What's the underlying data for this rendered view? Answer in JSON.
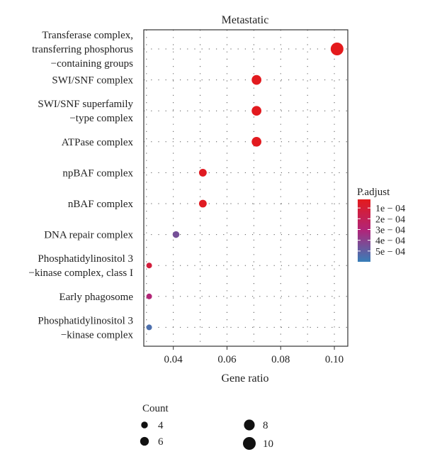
{
  "chart_data": {
    "type": "scatter",
    "title": "Metastatic",
    "xlabel": "Gene ratio",
    "ylabel": "",
    "xlim": [
      0.029,
      0.105
    ],
    "xticks": [
      0.04,
      0.06,
      0.08,
      0.1
    ],
    "xtick_labels": [
      "0.04",
      "0.06",
      "0.08",
      "0.10"
    ],
    "grid": true,
    "categories": [
      [
        "Transferase complex,",
        "transferring phosphorus",
        "−containing groups"
      ],
      [
        "SWI/SNF complex"
      ],
      [
        "SWI/SNF superfamily",
        "−type complex"
      ],
      [
        "ATPase complex"
      ],
      [
        "npBAF complex"
      ],
      [
        "nBAF complex"
      ],
      [
        "DNA repair complex"
      ],
      [
        "Phosphatidylinositol 3",
        "−kinase complex, class I"
      ],
      [
        "Early phagosome"
      ],
      [
        "Phosphatidylinositol 3",
        "−kinase complex"
      ]
    ],
    "points": [
      {
        "x": 0.101,
        "count": 10,
        "padj": 2e-05
      },
      {
        "x": 0.071,
        "count": 7,
        "padj": 3e-05
      },
      {
        "x": 0.071,
        "count": 7,
        "padj": 3e-05
      },
      {
        "x": 0.071,
        "count": 7,
        "padj": 3e-05
      },
      {
        "x": 0.051,
        "count": 5,
        "padj": 4e-05
      },
      {
        "x": 0.051,
        "count": 5,
        "padj": 4e-05
      },
      {
        "x": 0.041,
        "count": 4,
        "padj": 0.00045
      },
      {
        "x": 0.031,
        "count": 3,
        "padj": 0.00012
      },
      {
        "x": 0.031,
        "count": 3,
        "padj": 0.0003
      },
      {
        "x": 0.031,
        "count": 3,
        "padj": 0.00055
      }
    ],
    "color_legend": {
      "title": "P.adjust",
      "labels": [
        "1e − 04",
        "2e − 04",
        "3e − 04",
        "4e − 04",
        "5e − 04"
      ],
      "values": [
        0.0001,
        0.0002,
        0.0003,
        0.0004,
        0.0005
      ],
      "range": [
        2e-05,
        0.0006
      ],
      "colors": [
        "#e41a1c",
        "#377eb8"
      ]
    },
    "size_legend": {
      "title": "Count",
      "values": [
        4,
        6,
        8,
        10
      ],
      "labels": [
        "4",
        "6",
        "8",
        "10"
      ],
      "range": [
        3,
        10
      ],
      "placement": "bottom-left"
    }
  }
}
